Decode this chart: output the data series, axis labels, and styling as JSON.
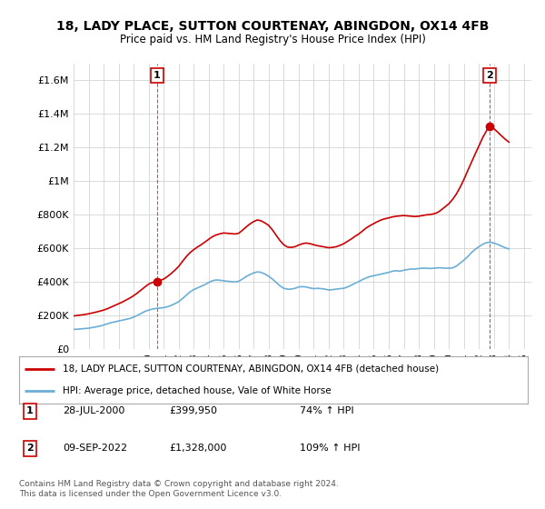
{
  "title": "18, LADY PLACE, SUTTON COURTENAY, ABINGDON, OX14 4FB",
  "subtitle": "Price paid vs. HM Land Registry's House Price Index (HPI)",
  "ylim": [
    0,
    1700000
  ],
  "yticks": [
    0,
    200000,
    400000,
    600000,
    800000,
    1000000,
    1200000,
    1400000,
    1600000
  ],
  "ytick_labels": [
    "£0",
    "£200K",
    "£400K",
    "£600K",
    "£800K",
    "£1M",
    "£1.2M",
    "£1.4M",
    "£1.6M"
  ],
  "xlim_start": 1995.0,
  "xlim_end": 2025.5,
  "sale1_x": 2000.57,
  "sale1_y": 399950,
  "sale1_label": "1",
  "sale1_date": "28-JUL-2000",
  "sale1_price": "£399,950",
  "sale1_hpi": "74% ↑ HPI",
  "sale2_x": 2022.69,
  "sale2_y": 1328000,
  "sale2_label": "2",
  "sale2_date": "09-SEP-2022",
  "sale2_price": "£1,328,000",
  "sale2_hpi": "109% ↑ HPI",
  "hpi_line_color": "#6baed6",
  "price_line_color": "#cc0000",
  "vline_color": "#cc0000",
  "grid_color": "#cccccc",
  "background_color": "#ffffff",
  "legend_label_price": "18, LADY PLACE, SUTTON COURTENAY, ABINGDON, OX14 4FB (detached house)",
  "legend_label_hpi": "HPI: Average price, detached house, Vale of White Horse",
  "footer": "Contains HM Land Registry data © Crown copyright and database right 2024.\nThis data is licensed under the Open Government Licence v3.0.",
  "hpi_data_x": [
    1995.0,
    1995.25,
    1995.5,
    1995.75,
    1996.0,
    1996.25,
    1996.5,
    1996.75,
    1997.0,
    1997.25,
    1997.5,
    1997.75,
    1998.0,
    1998.25,
    1998.5,
    1998.75,
    1999.0,
    1999.25,
    1999.5,
    1999.75,
    2000.0,
    2000.25,
    2000.5,
    2000.75,
    2001.0,
    2001.25,
    2001.5,
    2001.75,
    2002.0,
    2002.25,
    2002.5,
    2002.75,
    2003.0,
    2003.25,
    2003.5,
    2003.75,
    2004.0,
    2004.25,
    2004.5,
    2004.75,
    2005.0,
    2005.25,
    2005.5,
    2005.75,
    2006.0,
    2006.25,
    2006.5,
    2006.75,
    2007.0,
    2007.25,
    2007.5,
    2007.75,
    2008.0,
    2008.25,
    2008.5,
    2008.75,
    2009.0,
    2009.25,
    2009.5,
    2009.75,
    2010.0,
    2010.25,
    2010.5,
    2010.75,
    2011.0,
    2011.25,
    2011.5,
    2011.75,
    2012.0,
    2012.25,
    2012.5,
    2012.75,
    2013.0,
    2013.25,
    2013.5,
    2013.75,
    2014.0,
    2014.25,
    2014.5,
    2014.75,
    2015.0,
    2015.25,
    2015.5,
    2015.75,
    2016.0,
    2016.25,
    2016.5,
    2016.75,
    2017.0,
    2017.25,
    2017.5,
    2017.75,
    2018.0,
    2018.25,
    2018.5,
    2018.75,
    2019.0,
    2019.25,
    2019.5,
    2019.75,
    2020.0,
    2020.25,
    2020.5,
    2020.75,
    2021.0,
    2021.25,
    2021.5,
    2021.75,
    2022.0,
    2022.25,
    2022.5,
    2022.75,
    2023.0,
    2023.25,
    2023.5,
    2023.75,
    2024.0
  ],
  "hpi_data_y": [
    115000,
    116000,
    118000,
    120000,
    122000,
    126000,
    130000,
    135000,
    141000,
    148000,
    155000,
    160000,
    165000,
    170000,
    175000,
    180000,
    188000,
    198000,
    210000,
    222000,
    230000,
    236000,
    240000,
    242000,
    245000,
    250000,
    258000,
    268000,
    280000,
    298000,
    318000,
    338000,
    352000,
    362000,
    372000,
    382000,
    395000,
    405000,
    410000,
    408000,
    405000,
    402000,
    400000,
    398000,
    402000,
    415000,
    430000,
    442000,
    452000,
    458000,
    455000,
    445000,
    432000,
    415000,
    395000,
    375000,
    360000,
    355000,
    355000,
    360000,
    368000,
    370000,
    368000,
    362000,
    358000,
    360000,
    358000,
    355000,
    350000,
    352000,
    355000,
    358000,
    360000,
    368000,
    378000,
    390000,
    400000,
    412000,
    422000,
    430000,
    435000,
    440000,
    445000,
    450000,
    455000,
    462000,
    465000,
    462000,
    468000,
    472000,
    475000,
    475000,
    478000,
    480000,
    480000,
    478000,
    480000,
    482000,
    482000,
    480000,
    480000,
    482000,
    492000,
    510000,
    528000,
    548000,
    572000,
    592000,
    608000,
    622000,
    632000,
    635000,
    630000,
    622000,
    612000,
    602000,
    595000
  ],
  "price_data_x": [
    1995.0,
    1995.25,
    1995.5,
    1995.75,
    1996.0,
    1996.25,
    1996.5,
    1996.75,
    1997.0,
    1997.25,
    1997.5,
    1997.75,
    1998.0,
    1998.25,
    1998.5,
    1998.75,
    1999.0,
    1999.25,
    1999.5,
    1999.75,
    2000.0,
    2000.25,
    2000.57,
    2001.0,
    2001.25,
    2001.5,
    2001.75,
    2002.0,
    2002.25,
    2002.5,
    2002.75,
    2003.0,
    2003.25,
    2003.5,
    2003.75,
    2004.0,
    2004.25,
    2004.5,
    2004.75,
    2005.0,
    2005.25,
    2005.5,
    2005.75,
    2006.0,
    2006.25,
    2006.5,
    2006.75,
    2007.0,
    2007.25,
    2007.5,
    2007.75,
    2008.0,
    2008.25,
    2008.5,
    2008.75,
    2009.0,
    2009.25,
    2009.5,
    2009.75,
    2010.0,
    2010.25,
    2010.5,
    2010.75,
    2011.0,
    2011.25,
    2011.5,
    2011.75,
    2012.0,
    2012.25,
    2012.5,
    2012.75,
    2013.0,
    2013.25,
    2013.5,
    2013.75,
    2014.0,
    2014.25,
    2014.5,
    2014.75,
    2015.0,
    2015.25,
    2015.5,
    2015.75,
    2016.0,
    2016.25,
    2016.5,
    2016.75,
    2017.0,
    2017.25,
    2017.5,
    2017.75,
    2018.0,
    2018.25,
    2018.5,
    2018.75,
    2019.0,
    2019.25,
    2019.5,
    2019.75,
    2020.0,
    2020.25,
    2020.5,
    2020.75,
    2021.0,
    2021.25,
    2021.5,
    2021.75,
    2022.0,
    2022.25,
    2022.69,
    2023.0,
    2023.25,
    2023.5,
    2023.75,
    2024.0
  ],
  "price_data_y": [
    195000,
    198000,
    201000,
    204000,
    208000,
    213000,
    218000,
    224000,
    230000,
    238000,
    248000,
    258000,
    268000,
    278000,
    290000,
    302000,
    316000,
    332000,
    350000,
    368000,
    385000,
    395000,
    399950,
    415000,
    430000,
    448000,
    468000,
    490000,
    520000,
    548000,
    572000,
    590000,
    606000,
    620000,
    636000,
    652000,
    668000,
    678000,
    685000,
    690000,
    688000,
    686000,
    684000,
    688000,
    706000,
    726000,
    744000,
    758000,
    768000,
    762000,
    750000,
    735000,
    708000,
    676000,
    645000,
    620000,
    606000,
    604000,
    608000,
    618000,
    626000,
    630000,
    626000,
    620000,
    614000,
    610000,
    606000,
    602000,
    604000,
    608000,
    616000,
    626000,
    640000,
    654000,
    670000,
    684000,
    702000,
    720000,
    734000,
    746000,
    758000,
    768000,
    775000,
    780000,
    786000,
    790000,
    792000,
    794000,
    792000,
    790000,
    788000,
    790000,
    794000,
    798000,
    800000,
    804000,
    812000,
    828000,
    846000,
    864000,
    890000,
    922000,
    962000,
    1008000,
    1060000,
    1110000,
    1160000,
    1208000,
    1258000,
    1328000,
    1312000,
    1292000,
    1270000,
    1250000,
    1232000
  ]
}
